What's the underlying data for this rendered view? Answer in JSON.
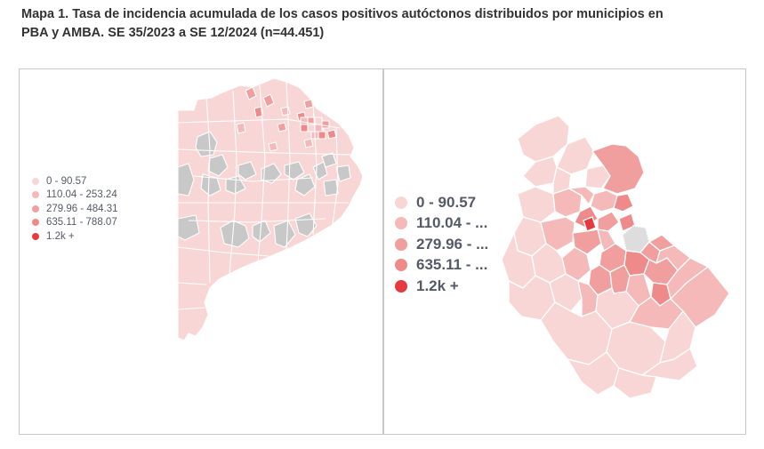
{
  "title_line1": "Mapa 1.  Tasa de incidencia acumulada de los casos positivos autóctonos distribuidos por municipios en",
  "title_line2": "PBA y AMBA. SE 35/2023 a SE 12/2024 (n=44.451)",
  "colors": {
    "c0": "#f9d6d6",
    "c1": "#f5b9b9",
    "c2": "#f19e9e",
    "c3": "#ee8a8a",
    "c4": "#e53a3e",
    "nodata": "#c8c8c8"
  },
  "left_legend": [
    {
      "label": "0 - 90.57",
      "color": "#f9d6d6"
    },
    {
      "label": "110.04 - 253.24",
      "color": "#f5b9b9"
    },
    {
      "label": "279.96 - 484.31",
      "color": "#f19e9e"
    },
    {
      "label": "635.11 - 788.07",
      "color": "#ee8a8a"
    },
    {
      "label": "1.2k +",
      "color": "#e53a3e"
    }
  ],
  "right_legend": [
    {
      "label": "0 - 90.57",
      "color": "#f9d6d6"
    },
    {
      "label": "110.04 - ...",
      "color": "#f5b9b9"
    },
    {
      "label": "279.96 - ...",
      "color": "#f19e9e"
    },
    {
      "label": "635.11 - ...",
      "color": "#ee8a8a"
    },
    {
      "label": "1.2k +",
      "color": "#e53a3e"
    }
  ]
}
